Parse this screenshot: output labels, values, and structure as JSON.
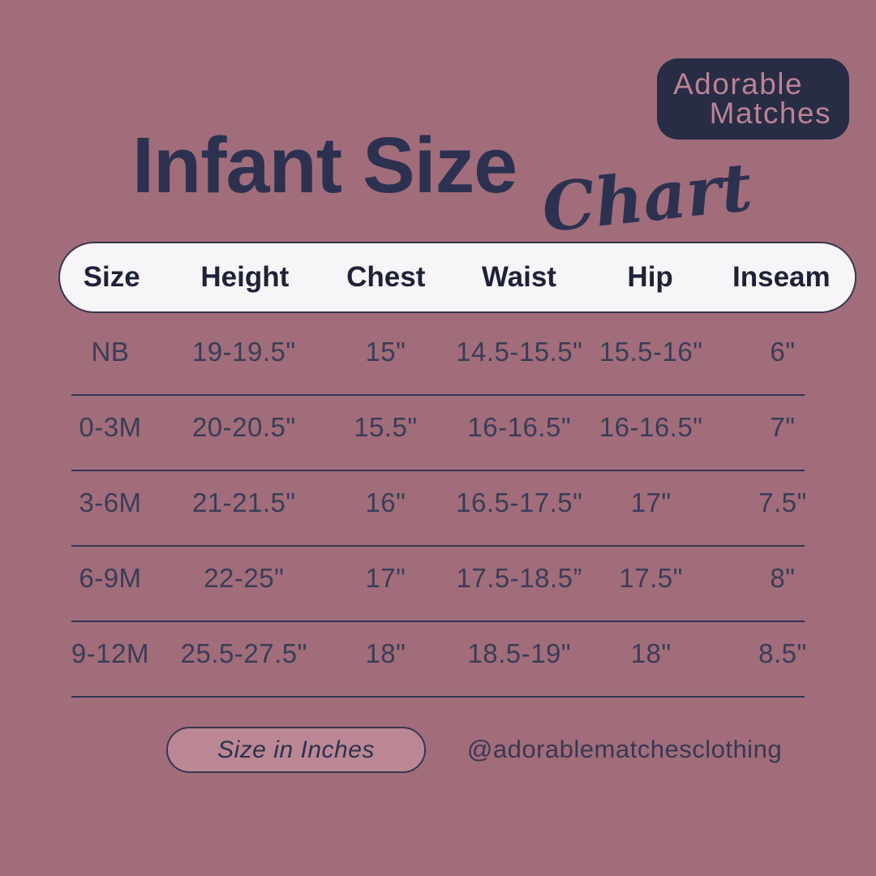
{
  "colors": {
    "background": "#a16d7b",
    "navy": "#2d3150",
    "logo_background": "#282c45",
    "logo_text": "#bb8294",
    "header_pill_background": "#f7f5f7",
    "unit_pill_background": "#bb8794"
  },
  "logo": {
    "line1": "Adorable",
    "line2": "Matches"
  },
  "title": {
    "main": "Infant Size",
    "script": "Chart"
  },
  "table": {
    "headers": [
      "Size",
      "Height",
      "Chest",
      "Waist",
      "Hip",
      "Inseam"
    ],
    "rows": [
      [
        "NB",
        "19-19.5\"",
        "15\"",
        "14.5-15.5\"",
        "15.5-16\"",
        "6\""
      ],
      [
        "0-3M",
        "20-20.5\"",
        "15.5\"",
        "16-16.5\"",
        "16-16.5\"",
        "7\""
      ],
      [
        "3-6M",
        "21-21.5\"",
        "16\"",
        "16.5-17.5\"",
        "17\"",
        "7.5\""
      ],
      [
        "6-9M",
        "22-25\"",
        "17\"",
        "17.5-18.5”",
        "17.5\"",
        "8\""
      ],
      [
        "9-12M",
        "25.5-27.5\"",
        "18\"",
        "18.5-19\"",
        "18\"",
        "8.5\""
      ]
    ]
  },
  "footer": {
    "unit_label": "Size in Inches",
    "handle": "@adorablematchesclothing"
  }
}
